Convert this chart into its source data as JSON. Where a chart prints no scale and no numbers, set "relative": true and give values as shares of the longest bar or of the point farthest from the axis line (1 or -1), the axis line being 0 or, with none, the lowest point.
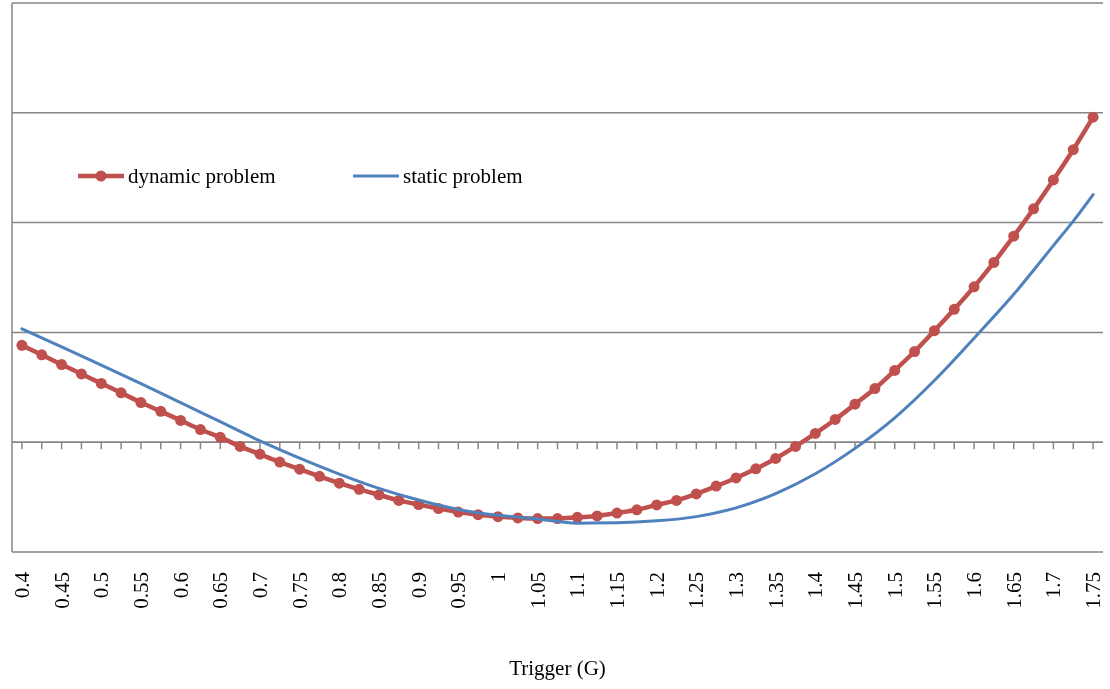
{
  "chart_data": {
    "type": "line",
    "relative": true,
    "xlabel": "Trigger (G)",
    "xlim": [
      0.3875,
      1.7625
    ],
    "xticks": [
      0.4,
      0.45,
      0.5,
      0.55,
      0.6,
      0.65,
      0.7,
      0.75,
      0.8,
      0.85,
      0.9,
      0.95,
      1,
      1.05,
      1.1,
      1.15,
      1.2,
      1.25,
      1.3,
      1.35,
      1.4,
      1.45,
      1.5,
      1.55,
      1.6,
      1.65,
      1.7,
      1.75
    ],
    "grid": "y",
    "legend": "top left",
    "series": [
      {
        "name": "dynamic problem",
        "color": "#c0504d",
        "marker": "circle",
        "x": [
          0.4,
          0.425,
          0.45,
          0.475,
          0.5,
          0.525,
          0.55,
          0.575,
          0.6,
          0.625,
          0.65,
          0.675,
          0.7,
          0.725,
          0.75,
          0.775,
          0.8,
          0.825,
          0.85,
          0.875,
          0.9,
          0.925,
          0.95,
          0.975,
          1,
          1.025,
          1.05,
          1.075,
          1.1,
          1.125,
          1.15,
          1.175,
          1.2,
          1.225,
          1.25,
          1.275,
          1.3,
          1.325,
          1.35,
          1.375,
          1.4,
          1.425,
          1.45,
          1.475,
          1.5,
          1.525,
          1.55,
          1.575,
          1.6,
          1.625,
          1.65,
          1.675,
          1.7,
          1.725,
          1.75
        ],
        "values": [
          0.298,
          0.269,
          0.239,
          0.21,
          0.181,
          0.152,
          0.122,
          0.095,
          0.067,
          0.039,
          0.015,
          -0.013,
          -0.037,
          -0.061,
          -0.083,
          -0.105,
          -0.126,
          -0.145,
          -0.162,
          -0.179,
          -0.192,
          -0.204,
          -0.215,
          -0.223,
          -0.229,
          -0.233,
          -0.235,
          -0.235,
          -0.231,
          -0.227,
          -0.218,
          -0.208,
          -0.193,
          -0.179,
          -0.159,
          -0.135,
          -0.11,
          -0.082,
          -0.05,
          -0.013,
          0.027,
          0.07,
          0.117,
          0.165,
          0.221,
          0.279,
          0.343,
          0.409,
          0.478,
          0.553,
          0.634,
          0.718,
          0.807,
          0.9,
          1
        ]
      },
      {
        "name": "static problem",
        "color": "#4f81bd",
        "marker": "none",
        "x": [
          0.4,
          0.45,
          0.5,
          0.55,
          0.6,
          0.65,
          0.7,
          0.75,
          0.8,
          0.85,
          0.9,
          0.95,
          1,
          1.05,
          1.1,
          1.15,
          1.2,
          1.25,
          1.3,
          1.35,
          1.4,
          1.45,
          1.5,
          1.55,
          1.6,
          1.65,
          1.7,
          1.725,
          1.75
        ],
        "values": [
          0.349,
          0.293,
          0.237,
          0.18,
          0.122,
          0.063,
          0.004,
          -0.049,
          -0.098,
          -0.142,
          -0.178,
          -0.207,
          -0.225,
          -0.236,
          -0.249,
          -0.248,
          -0.242,
          -0.229,
          -0.202,
          -0.158,
          -0.097,
          -0.019,
          0.075,
          0.19,
          0.32,
          0.455,
          0.605,
          0.68,
          0.762
        ]
      }
    ]
  }
}
